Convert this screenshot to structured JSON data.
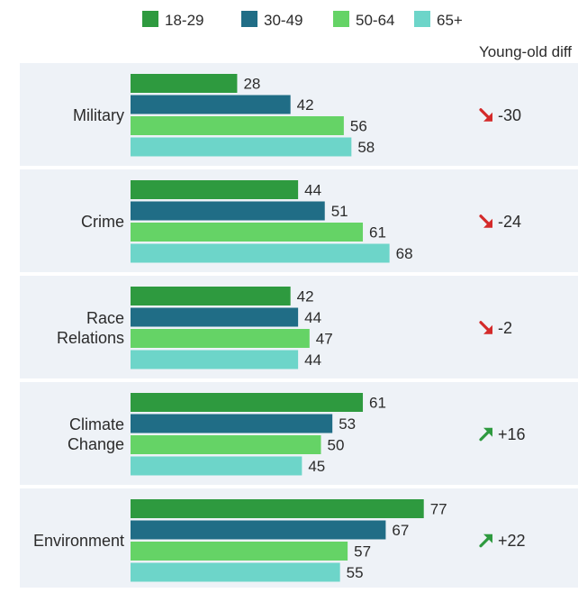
{
  "chart_data": {
    "type": "bar",
    "orientation": "horizontal",
    "title": "",
    "xlabel": "",
    "ylabel": "",
    "xlim": [
      0,
      100
    ],
    "grid": false,
    "legend": {
      "position": "top",
      "entries": [
        "18-29",
        "30-49",
        "50-64",
        "65+"
      ]
    },
    "diff_header": "Young-old diff",
    "categories": [
      "Military",
      "Crime",
      "Race Relations",
      "Climate Change",
      "Environment"
    ],
    "category_lines": [
      [
        "Military"
      ],
      [
        "Crime"
      ],
      [
        "Race",
        "Relations"
      ],
      [
        "Climate",
        "Change"
      ],
      [
        "Environment"
      ]
    ],
    "series": [
      {
        "name": "18-29",
        "color": "#2e9a3f",
        "values": [
          28,
          44,
          42,
          61,
          77
        ]
      },
      {
        "name": "30-49",
        "color": "#206d86",
        "values": [
          42,
          51,
          44,
          53,
          67
        ]
      },
      {
        "name": "50-64",
        "color": "#65d366",
        "values": [
          56,
          61,
          47,
          50,
          57
        ]
      },
      {
        "name": "65+",
        "color": "#6dd5c9",
        "values": [
          58,
          68,
          44,
          45,
          55
        ]
      }
    ],
    "diffs": [
      {
        "label": "-30",
        "direction": "down",
        "icon": "arrow-down-right-icon"
      },
      {
        "label": "-24",
        "direction": "down",
        "icon": "arrow-down-right-icon"
      },
      {
        "label": "-2",
        "direction": "down",
        "icon": "arrow-down-right-icon"
      },
      {
        "label": "+16",
        "direction": "up",
        "icon": "arrow-up-right-icon"
      },
      {
        "label": "+22",
        "direction": "up",
        "icon": "arrow-up-right-icon"
      }
    ],
    "colors": {
      "panel": "#eef2f7",
      "arrow_down": "#d42a2a",
      "arrow_up": "#2e9a3f",
      "text": "#2b2b2b"
    }
  }
}
